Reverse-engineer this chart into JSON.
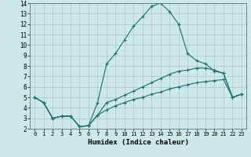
{
  "xlabel": "Humidex (Indice chaleur)",
  "bg_color": "#cde8e8",
  "grid_color": "#b0cccc",
  "line_color": "#1a6e6e",
  "xlim": [
    -0.5,
    23.5
  ],
  "ylim": [
    2,
    14
  ],
  "xticks": [
    0,
    1,
    2,
    3,
    4,
    5,
    6,
    7,
    8,
    9,
    10,
    11,
    12,
    13,
    14,
    15,
    16,
    17,
    18,
    19,
    20,
    21,
    22,
    23
  ],
  "yticks": [
    2,
    3,
    4,
    5,
    6,
    7,
    8,
    9,
    10,
    11,
    12,
    13,
    14
  ],
  "series": [
    {
      "x": [
        0,
        1,
        2,
        3,
        4,
        5,
        6,
        7,
        8,
        9,
        10,
        11,
        12,
        13,
        14,
        15,
        16,
        17,
        18,
        19,
        20,
        21,
        22,
        23
      ],
      "y": [
        5.0,
        4.5,
        3.0,
        3.2,
        3.2,
        2.2,
        2.3,
        4.5,
        8.2,
        9.2,
        10.5,
        11.8,
        12.7,
        13.7,
        14.0,
        13.2,
        12.0,
        9.2,
        8.5,
        8.2,
        7.5,
        7.3,
        5.0,
        5.3
      ]
    },
    {
      "x": [
        0,
        1,
        2,
        3,
        4,
        5,
        6,
        7,
        8,
        9,
        10,
        11,
        12,
        13,
        14,
        15,
        16,
        17,
        18,
        19,
        20,
        21,
        22,
        23
      ],
      "y": [
        5.0,
        4.5,
        3.0,
        3.2,
        3.2,
        2.2,
        2.3,
        3.3,
        4.5,
        4.8,
        5.2,
        5.6,
        6.0,
        6.4,
        6.8,
        7.2,
        7.5,
        7.6,
        7.8,
        7.8,
        7.6,
        7.3,
        5.0,
        5.3
      ]
    },
    {
      "x": [
        0,
        1,
        2,
        3,
        4,
        5,
        6,
        7,
        8,
        9,
        10,
        11,
        12,
        13,
        14,
        15,
        16,
        17,
        18,
        19,
        20,
        21,
        22,
        23
      ],
      "y": [
        5.0,
        4.5,
        3.0,
        3.2,
        3.2,
        2.2,
        2.3,
        3.3,
        3.8,
        4.2,
        4.5,
        4.8,
        5.0,
        5.3,
        5.5,
        5.8,
        6.0,
        6.2,
        6.4,
        6.5,
        6.6,
        6.7,
        5.0,
        5.3
      ]
    }
  ]
}
